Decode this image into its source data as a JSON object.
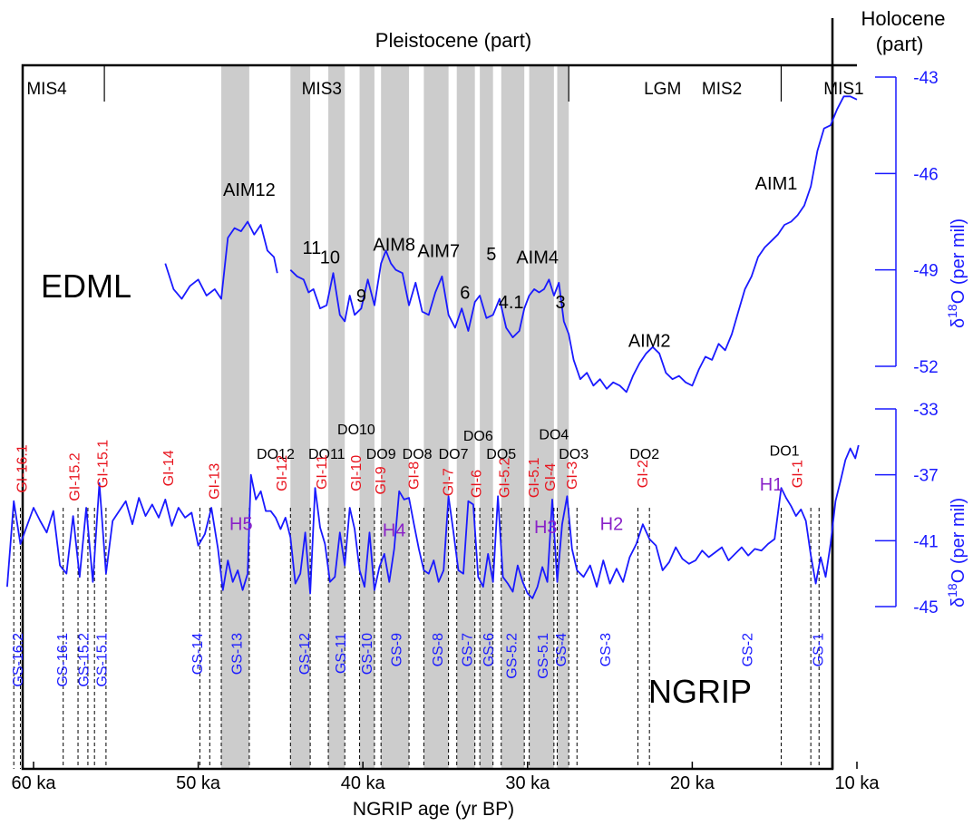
{
  "chart_data": {
    "type": "line",
    "xlabel": "NGRIP age (yr BP)",
    "x_ticks": [
      60,
      50,
      40,
      30,
      20,
      10
    ],
    "x_tick_labels": [
      "60 ka",
      "50 ka",
      "40 ka",
      "30 ka",
      "20 ka",
      "10 ka"
    ],
    "xlim": [
      61.5,
      9.5
    ],
    "epochs": {
      "pleistocene": "Pleistocene (part)",
      "holocene_line1": "Holocene",
      "holocene_line2": "(part)",
      "boundary_ka": 11.7
    },
    "mis": [
      {
        "label": "MIS4",
        "x": 59.2
      },
      {
        "label": "MIS3",
        "x": 42.5
      },
      {
        "label": "LGM",
        "x": 21.8
      },
      {
        "label": "MIS2",
        "x": 18.2
      },
      {
        "label": "MIS1",
        "x": 10.8
      }
    ],
    "mis_boundaries_ka": [
      55.7,
      27.5,
      14.6
    ],
    "stadial_bands_ka": [
      [
        48.6,
        46.9
      ],
      [
        44.4,
        43.2
      ],
      [
        42.1,
        41.1
      ],
      [
        40.2,
        39.3
      ],
      [
        38.9,
        37.2
      ],
      [
        36.3,
        34.8
      ],
      [
        34.3,
        33.2
      ],
      [
        32.9,
        32.1
      ],
      [
        31.6,
        30.2
      ],
      [
        29.9,
        28.4
      ],
      [
        28.2,
        27.5
      ]
    ],
    "edml": {
      "name": "EDML",
      "ylabel_lead": "δ",
      "ylabel_sup": "18",
      "ylabel_tail": "O (per mil)",
      "ylim": [
        -43,
        -52
      ],
      "y_ticks": [
        -43,
        -46,
        -49,
        -52
      ],
      "series": [
        {
          "x": [
            52.0,
            51.5,
            51.0,
            50.5,
            50.0,
            49.5,
            49.0,
            48.6,
            48.2,
            47.8,
            47.4,
            47.0,
            46.6,
            46.2,
            45.8,
            45.4,
            45.2
          ],
          "values": [
            -48.8,
            -49.6,
            -49.9,
            -49.5,
            -49.3,
            -49.8,
            -49.6,
            -49.9,
            -48.0,
            -47.7,
            -47.8,
            -47.5,
            -47.9,
            -47.6,
            -48.4,
            -48.6,
            -49.1
          ]
        },
        {
          "x": [
            44.4,
            44.0,
            43.6,
            43.3,
            43.0,
            42.6,
            42.2,
            41.8,
            41.4,
            41.1,
            40.8,
            40.5,
            40.1,
            39.7,
            39.3,
            38.9,
            38.6,
            38.3,
            38.0,
            37.6,
            37.2,
            36.8,
            36.4,
            36.0,
            35.6,
            35.2,
            34.8,
            34.4,
            34.0,
            33.6,
            33.2,
            32.9,
            32.5,
            32.1,
            31.7,
            31.3,
            30.9,
            30.5,
            30.2,
            29.9,
            29.6,
            29.3,
            29.0,
            28.7,
            28.4,
            28.1,
            27.8,
            27.5,
            27.2,
            26.8,
            26.4,
            26.0,
            25.6,
            25.2,
            24.8,
            24.4,
            24.0,
            23.6,
            23.2,
            22.8,
            22.4,
            22.0,
            21.6,
            21.2,
            20.8,
            20.4,
            20.0,
            19.6,
            19.2,
            18.8,
            18.4,
            18.0,
            17.6,
            17.2,
            16.8,
            16.4,
            16.0,
            15.6,
            15.2,
            14.8,
            14.4,
            14.0,
            13.6,
            13.2,
            12.8,
            12.4,
            12.0,
            11.6,
            11.2,
            10.8,
            10.4,
            10.0
          ],
          "values": [
            -49.0,
            -49.2,
            -49.3,
            -49.7,
            -49.6,
            -50.2,
            -50.1,
            -49.1,
            -50.4,
            -50.6,
            -49.8,
            -50.4,
            -50.2,
            -49.3,
            -50.1,
            -48.8,
            -48.4,
            -48.8,
            -49.0,
            -49.1,
            -50.1,
            -49.4,
            -50.3,
            -50.4,
            -49.7,
            -49.2,
            -50.4,
            -50.8,
            -50.2,
            -50.9,
            -50.0,
            -49.8,
            -50.5,
            -50.4,
            -49.9,
            -50.8,
            -51.1,
            -50.9,
            -50.2,
            -49.8,
            -49.6,
            -49.7,
            -49.6,
            -49.3,
            -49.8,
            -49.4,
            -50.6,
            -51.0,
            -51.8,
            -52.4,
            -52.2,
            -52.6,
            -52.4,
            -52.7,
            -52.5,
            -52.6,
            -52.8,
            -52.3,
            -51.9,
            -51.6,
            -51.4,
            -51.6,
            -52.2,
            -52.4,
            -52.3,
            -52.5,
            -52.6,
            -52.1,
            -51.7,
            -51.8,
            -51.3,
            -51.5,
            -51.0,
            -50.3,
            -49.6,
            -49.2,
            -48.6,
            -48.3,
            -48.1,
            -47.9,
            -47.6,
            -47.5,
            -47.3,
            -47.0,
            -46.4,
            -45.3,
            -44.6,
            -44.5,
            -44.0,
            -43.6,
            -43.6,
            -43.7
          ]
        }
      ],
      "labels": [
        {
          "text": "AIM12",
          "x": 46.9,
          "y": -46.5
        },
        {
          "text": "11",
          "x": 43.1,
          "y": -48.3
        },
        {
          "text": "10",
          "x": 42.0,
          "y": -48.6
        },
        {
          "text": "AIM8",
          "x": 38.1,
          "y": -48.2
        },
        {
          "text": "9",
          "x": 40.1,
          "y": -49.8
        },
        {
          "text": "AIM7",
          "x": 35.4,
          "y": -48.4
        },
        {
          "text": "6",
          "x": 33.8,
          "y": -49.7
        },
        {
          "text": "5",
          "x": 32.2,
          "y": -48.5
        },
        {
          "text": "4.1",
          "x": 31.0,
          "y": -50.0
        },
        {
          "text": "AIM4",
          "x": 29.4,
          "y": -48.6
        },
        {
          "text": "3",
          "x": 28.0,
          "y": -50.0
        },
        {
          "text": "AIM2",
          "x": 22.6,
          "y": -51.2
        },
        {
          "text": "AIM1",
          "x": 14.9,
          "y": -46.3
        }
      ]
    },
    "ngrip": {
      "name": "NGRIP",
      "ylabel_lead": "δ",
      "ylabel_sup": "18",
      "ylabel_tail": "O (per mil)",
      "ylim": [
        -33,
        -45
      ],
      "y_ticks": [
        -33,
        -37,
        -41,
        -45
      ],
      "series": [
        {
          "x": [
            61.6,
            61.2,
            60.8,
            60.4,
            60.0,
            59.6,
            59.2,
            58.8,
            58.4,
            58.0,
            57.6,
            57.2,
            56.8,
            56.4,
            56.0,
            55.6,
            55.2,
            54.8,
            54.4,
            54.0,
            53.6,
            53.2,
            52.8,
            52.4,
            52.0,
            51.6,
            51.2,
            50.8,
            50.4,
            50.0,
            49.6,
            49.2,
            48.8,
            48.5,
            48.2,
            47.9,
            47.6,
            47.3,
            47.0,
            46.8,
            46.5,
            46.2,
            45.9,
            45.6,
            45.3,
            45.0,
            44.7,
            44.4,
            44.1,
            43.8,
            43.5,
            43.2,
            42.9,
            42.6,
            42.3,
            42.0,
            41.7,
            41.4,
            41.1,
            40.8,
            40.5,
            40.2,
            39.9,
            39.6,
            39.3,
            39.0,
            38.7,
            38.4,
            38.1,
            37.8,
            37.5,
            37.2,
            36.9,
            36.6,
            36.3,
            36.0,
            35.7,
            35.4,
            35.1,
            34.8,
            34.5,
            34.2,
            33.9,
            33.6,
            33.3,
            33.0,
            32.7,
            32.4,
            32.1,
            31.8,
            31.5,
            31.2,
            30.9,
            30.6,
            30.3,
            30.0,
            29.7,
            29.4,
            29.1,
            28.8,
            28.5,
            28.2,
            27.9,
            27.6,
            27.3,
            27.0,
            26.6,
            26.2,
            25.8,
            25.4,
            25.0,
            24.6,
            24.2,
            23.8,
            23.4,
            23.0,
            22.6,
            22.2,
            21.8,
            21.4,
            21.0,
            20.6,
            20.2,
            19.8,
            19.4,
            19.0,
            18.6,
            18.2,
            17.8,
            17.4,
            17.0,
            16.6,
            16.2,
            15.8,
            15.4,
            15.0,
            14.6,
            14.3,
            14.0,
            13.7,
            13.4,
            13.1,
            12.8,
            12.5,
            12.2,
            11.9,
            11.6,
            11.3,
            11.0,
            10.7,
            10.4,
            10.1,
            9.9
          ],
          "values": [
            -43.8,
            -38.6,
            -41.2,
            -40.1,
            -39.0,
            -39.8,
            -40.5,
            -39.2,
            -42.5,
            -43.0,
            -39.5,
            -43.2,
            -39.0,
            -43.5,
            -37.5,
            -43.0,
            -39.8,
            -39.2,
            -38.6,
            -40.0,
            -38.4,
            -39.5,
            -38.8,
            -39.6,
            -38.5,
            -40.1,
            -39.0,
            -39.6,
            -39.3,
            -41.3,
            -40.6,
            -39.0,
            -41.5,
            -44.0,
            -42.2,
            -43.5,
            -42.8,
            -44.0,
            -43.0,
            -37.0,
            -38.5,
            -38.0,
            -39.2,
            -39.2,
            -39.6,
            -40.3,
            -39.6,
            -40.8,
            -43.6,
            -43.0,
            -40.5,
            -44.2,
            -37.8,
            -40.2,
            -41.2,
            -43.5,
            -43.2,
            -40.5,
            -42.5,
            -39.0,
            -40.3,
            -42.8,
            -43.8,
            -40.5,
            -44.0,
            -42.6,
            -41.8,
            -43.5,
            -41.5,
            -38.0,
            -38.5,
            -38.4,
            -40.0,
            -41.5,
            -42.8,
            -43.0,
            -42.2,
            -43.5,
            -42.8,
            -38.3,
            -40.5,
            -42.8,
            -43.0,
            -38.6,
            -38.8,
            -43.2,
            -43.8,
            -41.8,
            -43.5,
            -38.3,
            -43.2,
            -43.6,
            -44.1,
            -42.5,
            -43.5,
            -44.2,
            -44.5,
            -43.8,
            -42.6,
            -43.5,
            -38.5,
            -43.5,
            -40.0,
            -38.3,
            -41.5,
            -42.8,
            -43.2,
            -42.5,
            -43.8,
            -42.2,
            -43.6,
            -42.7,
            -43.5,
            -42.0,
            -41.2,
            -40.0,
            -40.9,
            -41.3,
            -42.8,
            -42.3,
            -41.4,
            -42.1,
            -42.4,
            -42.2,
            -41.6,
            -42.0,
            -41.7,
            -41.4,
            -42.2,
            -41.8,
            -41.4,
            -41.9,
            -41.5,
            -41.6,
            -41.2,
            -40.9,
            -37.8,
            -38.4,
            -38.9,
            -39.5,
            -39.1,
            -39.8,
            -41.9,
            -43.6,
            -42.0,
            -43.2,
            -41.2,
            -38.6,
            -37.4,
            -36.1,
            -35.4,
            -36.0,
            -35.2
          ]
        }
      ],
      "do_labels": [
        {
          "text": "DO12",
          "x": 45.3,
          "y": -35.7
        },
        {
          "text": "DO11",
          "x": 42.2,
          "y": -35.7
        },
        {
          "text": "DO10",
          "x": 40.4,
          "y": -34.2
        },
        {
          "text": "DO9",
          "x": 38.9,
          "y": -35.7
        },
        {
          "text": "DO8",
          "x": 36.7,
          "y": -35.7
        },
        {
          "text": "DO7",
          "x": 34.5,
          "y": -35.7
        },
        {
          "text": "DO6",
          "x": 33.0,
          "y": -34.6
        },
        {
          "text": "DO5",
          "x": 31.6,
          "y": -35.7
        },
        {
          "text": "DO4",
          "x": 28.4,
          "y": -34.5
        },
        {
          "text": "DO3",
          "x": 27.2,
          "y": -35.7
        },
        {
          "text": "DO2",
          "x": 22.9,
          "y": -35.7
        },
        {
          "text": "DO1",
          "x": 14.4,
          "y": -35.5
        }
      ],
      "gi_labels": [
        {
          "text": "GI-16.1",
          "x": 60.7,
          "y": -38.1
        },
        {
          "text": "GI-15.2",
          "x": 57.5,
          "y": -38.6
        },
        {
          "text": "GI-15.1",
          "x": 55.8,
          "y": -37.8
        },
        {
          "text": "GI-14",
          "x": 51.8,
          "y": -37.7
        },
        {
          "text": "GI-13",
          "x": 49.0,
          "y": -38.5
        },
        {
          "text": "GI-12",
          "x": 44.9,
          "y": -38.0
        },
        {
          "text": "GI-11",
          "x": 42.5,
          "y": -37.9
        },
        {
          "text": "GI-10",
          "x": 40.4,
          "y": -38.0
        },
        {
          "text": "GI-9",
          "x": 38.9,
          "y": -38.2
        },
        {
          "text": "GI-8",
          "x": 36.9,
          "y": -37.9
        },
        {
          "text": "GI-7",
          "x": 34.8,
          "y": -38.3
        },
        {
          "text": "GI-6",
          "x": 33.1,
          "y": -38.4
        },
        {
          "text": "GI-5.2",
          "x": 31.4,
          "y": -38.4
        },
        {
          "text": "GI-5.1",
          "x": 29.6,
          "y": -38.4
        },
        {
          "text": "GI-4",
          "x": 28.6,
          "y": -38.0
        },
        {
          "text": "GI-3",
          "x": 27.3,
          "y": -37.9
        },
        {
          "text": "GI-2",
          "x": 23.0,
          "y": -37.8
        },
        {
          "text": "GI-1",
          "x": 13.6,
          "y": -37.8
        }
      ],
      "h_labels": [
        {
          "text": "H5",
          "x": 47.4,
          "y": -39.9
        },
        {
          "text": "H4",
          "x": 38.1,
          "y": -40.3
        },
        {
          "text": "H3",
          "x": 28.9,
          "y": -40.1
        },
        {
          "text": "H2",
          "x": 24.9,
          "y": -39.9
        },
        {
          "text": "H1",
          "x": 15.2,
          "y": -37.5
        }
      ],
      "gs_labels": [
        {
          "text": "GS-16.2",
          "x": 61.0
        },
        {
          "text": "GS-16.1",
          "x": 58.3
        },
        {
          "text": "GS-15.2",
          "x": 57.0
        },
        {
          "text": "GS-15.1",
          "x": 55.9
        },
        {
          "text": "GS-14",
          "x": 50.1
        },
        {
          "text": "GS-13",
          "x": 47.7
        },
        {
          "text": "GS-12",
          "x": 43.6
        },
        {
          "text": "GS-11",
          "x": 41.4
        },
        {
          "text": "GS-10",
          "x": 39.8
        },
        {
          "text": "GS-9",
          "x": 38.0
        },
        {
          "text": "GS-8",
          "x": 35.5
        },
        {
          "text": "GS-7",
          "x": 33.7
        },
        {
          "text": "GS-6",
          "x": 32.4
        },
        {
          "text": "GS-5.2",
          "x": 31.0
        },
        {
          "text": "GS-5.1",
          "x": 29.1
        },
        {
          "text": "GS-4",
          "x": 28.0
        },
        {
          "text": "GS-3",
          "x": 25.3
        },
        {
          "text": "GS-2",
          "x": 16.7
        },
        {
          "text": "GS-1",
          "x": 12.4
        }
      ],
      "event_lines_ka": [
        61.2,
        60.8,
        58.2,
        57.3,
        56.7,
        56.3,
        55.6,
        49.9,
        49.3,
        48.6,
        46.9,
        44.4,
        43.2,
        42.1,
        41.1,
        40.2,
        39.3,
        38.9,
        37.2,
        36.3,
        34.8,
        34.3,
        33.2,
        32.9,
        32.1,
        31.6,
        30.2,
        29.9,
        28.4,
        28.2,
        27.5,
        27.0,
        23.3,
        22.6,
        14.6,
        12.8,
        12.3
      ]
    }
  }
}
